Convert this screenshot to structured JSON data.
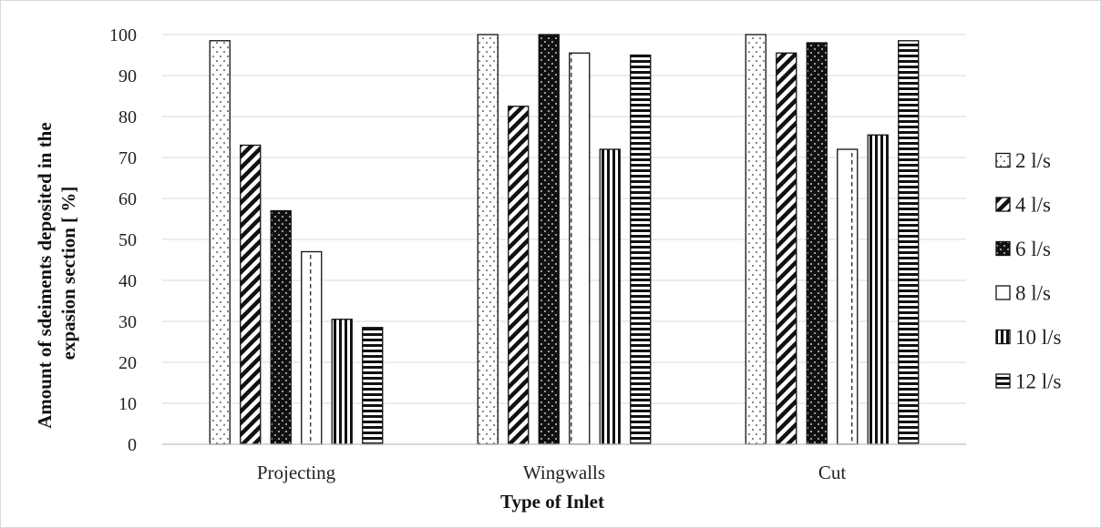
{
  "chart_data": {
    "type": "bar",
    "title": "",
    "xlabel": "Type of Inlet",
    "ylabel_line1": "Amount of sdeiments deposited in the",
    "ylabel_line2": "expasion section [ %]",
    "categories": [
      "Projecting",
      "Wingwalls",
      "Cut"
    ],
    "ylim": [
      0,
      100
    ],
    "yticks": [
      "0",
      "10",
      "20",
      "30",
      "40",
      "50",
      "60",
      "70",
      "80",
      "90",
      "100"
    ],
    "grid": true,
    "legend_position": "right",
    "series": [
      {
        "name": "2 l/s",
        "pattern": "dots",
        "values": [
          98.5,
          100,
          100
        ]
      },
      {
        "name": "4 l/s",
        "pattern": "diagonal",
        "values": [
          73,
          82.5,
          95.5
        ]
      },
      {
        "name": "6 l/s",
        "pattern": "dark-dots",
        "values": [
          57,
          100,
          98
        ]
      },
      {
        "name": "8 l/s",
        "pattern": "dashed-vertical",
        "values": [
          47,
          95.5,
          72
        ]
      },
      {
        "name": "10 l/s",
        "pattern": "vertical-lines",
        "values": [
          30.5,
          72,
          75.5
        ]
      },
      {
        "name": "12 l/s",
        "pattern": "horizontal-lines",
        "values": [
          28.5,
          95,
          98.5
        ]
      }
    ]
  }
}
